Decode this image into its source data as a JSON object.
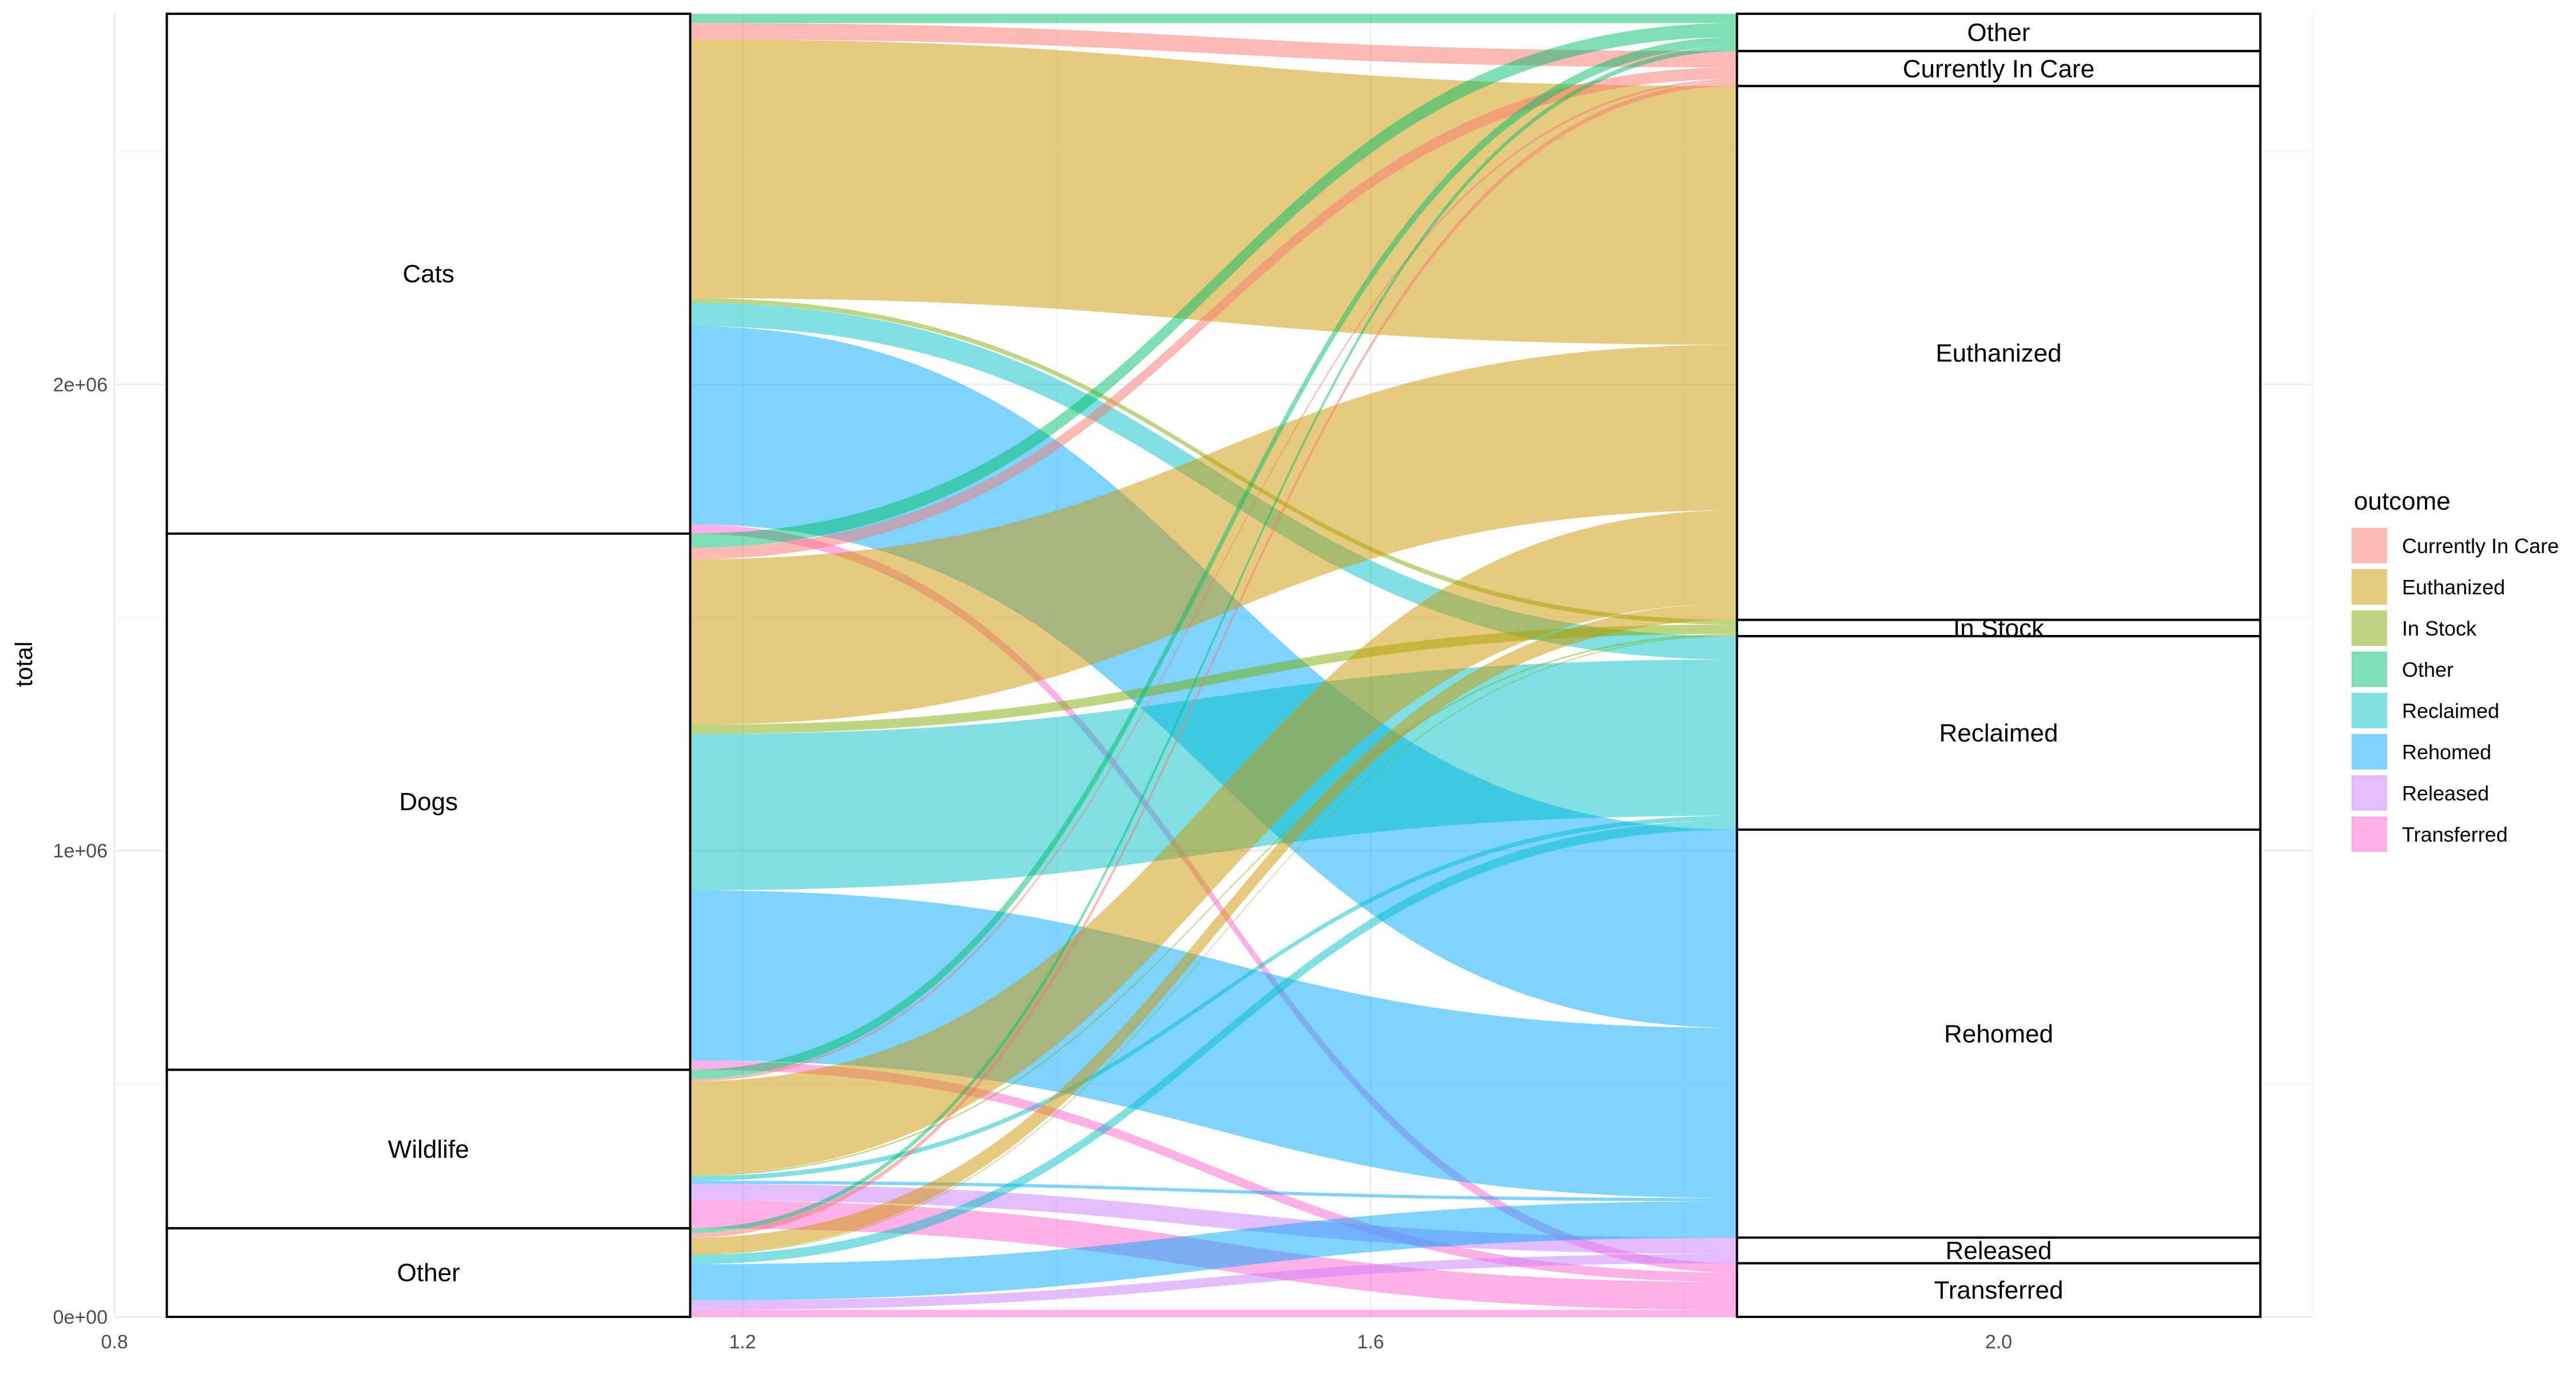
{
  "chart_data": {
    "type": "alluvial",
    "xlabel": "",
    "ylabel": "total",
    "x_ticks": [
      "0.8",
      "1.2",
      "1.6",
      "2.0"
    ],
    "y_ticks": [
      "0e+00",
      "1e+06",
      "2e+06"
    ],
    "y_tick_values": [
      0,
      1000000,
      2000000
    ],
    "xlim": [
      0.8,
      2.2
    ],
    "ylim": [
      0,
      2800000
    ],
    "axis1": {
      "categories": [
        "Cats",
        "Dogs",
        "Wildlife",
        "Other"
      ],
      "totals": [
        1115000,
        1150000,
        340000,
        190000
      ]
    },
    "axis2": {
      "categories": [
        "Other",
        "Currently In Care",
        "Euthanized",
        "In Stock",
        "Reclaimed",
        "Rehomed",
        "Released",
        "Transferred"
      ],
      "totals": [
        80000,
        75000,
        1145000,
        35000,
        415000,
        875000,
        55000,
        115000
      ]
    },
    "legend": {
      "title": "outcome",
      "position": "right",
      "items": [
        {
          "label": "Currently In Care",
          "color": "#F8766D"
        },
        {
          "label": "Euthanized",
          "color": "#CD9600"
        },
        {
          "label": "In Stock",
          "color": "#7CAE00"
        },
        {
          "label": "Other",
          "color": "#00BE67"
        },
        {
          "label": "Reclaimed",
          "color": "#00BFC4"
        },
        {
          "label": "Rehomed",
          "color": "#00A9FF"
        },
        {
          "label": "Released",
          "color": "#C77CFF"
        },
        {
          "label": "Transferred",
          "color": "#FF61CC"
        }
      ]
    },
    "flows": [
      {
        "from": "Cats",
        "to": "Other",
        "value": 20000
      },
      {
        "from": "Cats",
        "to": "Currently In Care",
        "value": 35000
      },
      {
        "from": "Cats",
        "to": "Euthanized",
        "value": 555000
      },
      {
        "from": "Cats",
        "to": "In Stock",
        "value": 10000
      },
      {
        "from": "Cats",
        "to": "Reclaimed",
        "value": 50000
      },
      {
        "from": "Cats",
        "to": "Rehomed",
        "value": 425000
      },
      {
        "from": "Cats",
        "to": "Transferred",
        "value": 20000
      },
      {
        "from": "Dogs",
        "to": "Other",
        "value": 30000
      },
      {
        "from": "Dogs",
        "to": "Currently In Care",
        "value": 25000
      },
      {
        "from": "Dogs",
        "to": "Euthanized",
        "value": 355000
      },
      {
        "from": "Dogs",
        "to": "In Stock",
        "value": 20000
      },
      {
        "from": "Dogs",
        "to": "Reclaimed",
        "value": 335000
      },
      {
        "from": "Dogs",
        "to": "Rehomed",
        "value": 365000
      },
      {
        "from": "Dogs",
        "to": "Transferred",
        "value": 20000
      },
      {
        "from": "Wildlife",
        "to": "Other",
        "value": 20000
      },
      {
        "from": "Wildlife",
        "to": "Currently In Care",
        "value": 5000
      },
      {
        "from": "Wildlife",
        "to": "Euthanized",
        "value": 200000
      },
      {
        "from": "Wildlife",
        "to": "In Stock",
        "value": 3000
      },
      {
        "from": "Wildlife",
        "to": "Reclaimed",
        "value": 10000
      },
      {
        "from": "Wildlife",
        "to": "Rehomed",
        "value": 7000
      },
      {
        "from": "Wildlife",
        "to": "Released",
        "value": 35000
      },
      {
        "from": "Wildlife",
        "to": "Transferred",
        "value": 60000
      },
      {
        "from": "Other",
        "to": "Other",
        "value": 10000
      },
      {
        "from": "Other",
        "to": "Currently In Care",
        "value": 10000
      },
      {
        "from": "Other",
        "to": "Euthanized",
        "value": 35000
      },
      {
        "from": "Other",
        "to": "In Stock",
        "value": 2000
      },
      {
        "from": "Other",
        "to": "Reclaimed",
        "value": 20000
      },
      {
        "from": "Other",
        "to": "Rehomed",
        "value": 78000
      },
      {
        "from": "Other",
        "to": "Released",
        "value": 20000
      },
      {
        "from": "Other",
        "to": "Transferred",
        "value": 15000
      }
    ]
  }
}
